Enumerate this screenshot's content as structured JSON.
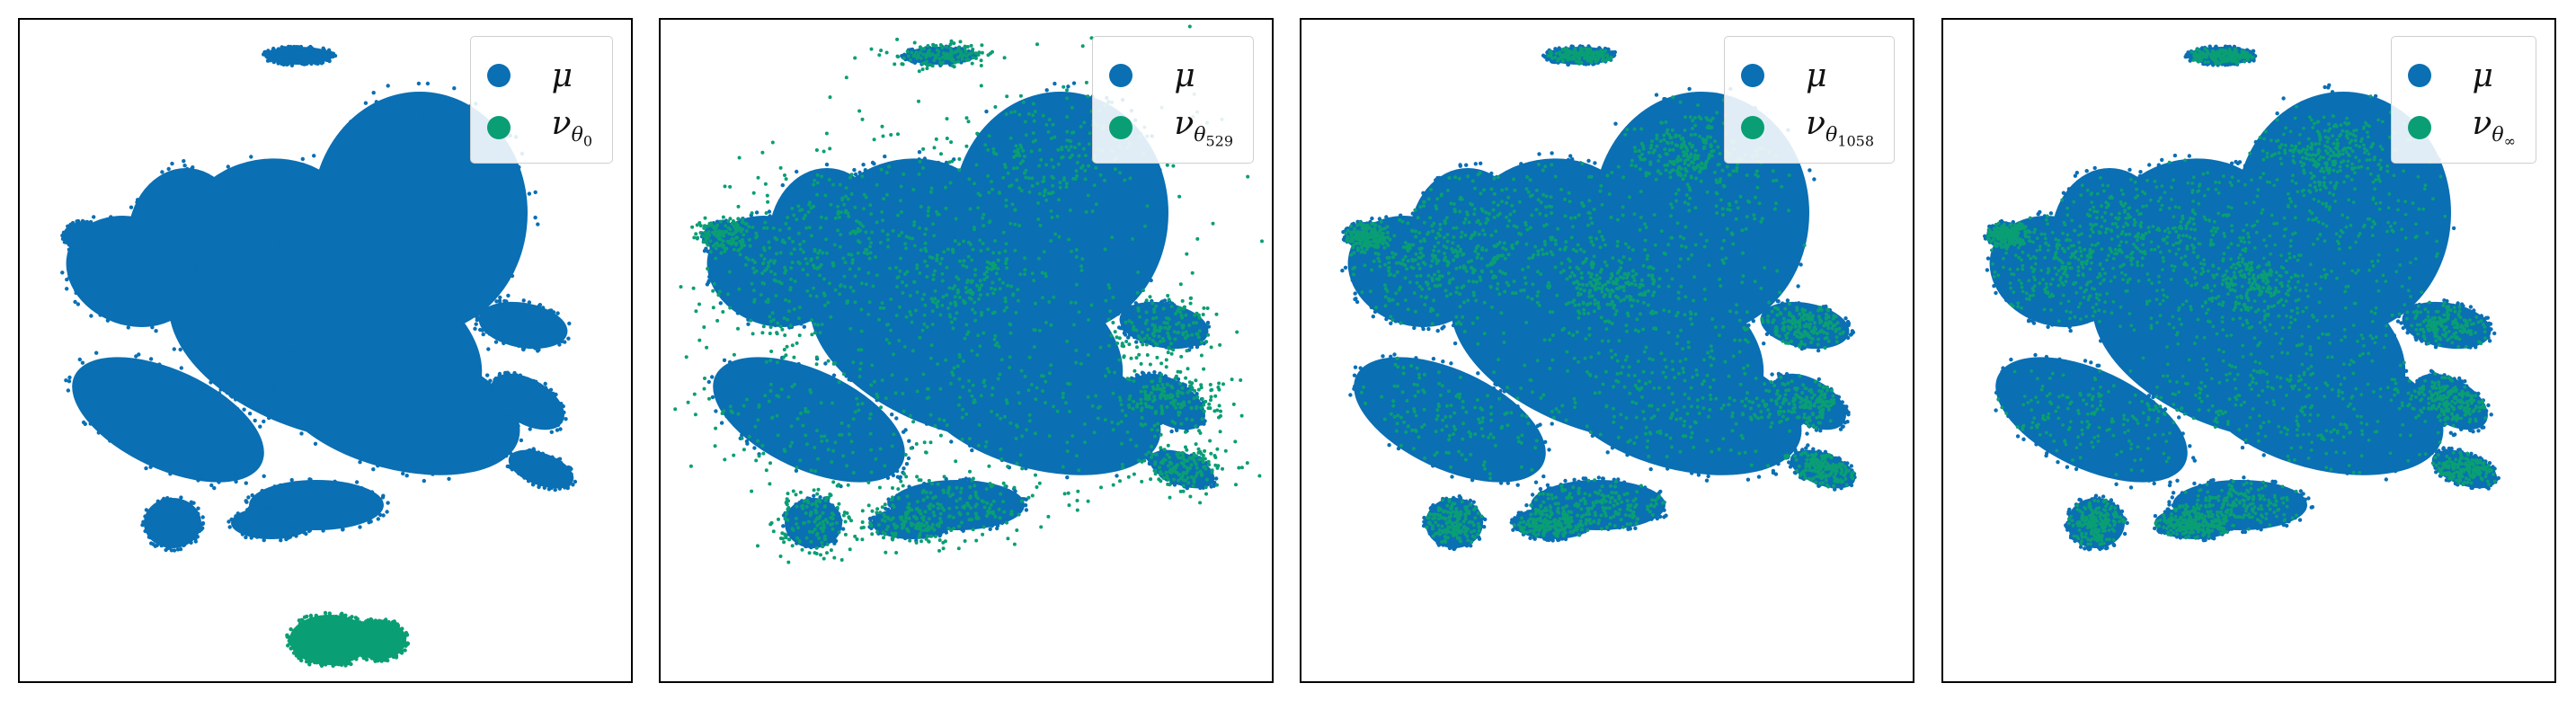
{
  "colors": {
    "mu": "#0a6fb3",
    "nu": "#0a9e74"
  },
  "chart_data": [
    {
      "type": "scatter",
      "panel_id": "panel-1",
      "legend": {
        "mu": "μ",
        "nu_base": "ν",
        "nu_sub": "θ",
        "nu_sub_sub": "0"
      },
      "legend_position": "top-right",
      "nu_pattern": "separate"
    },
    {
      "type": "scatter",
      "panel_id": "panel-2",
      "legend": {
        "mu": "μ",
        "nu_base": "ν",
        "nu_sub": "θ",
        "nu_sub_sub": "529"
      },
      "legend_position": "top-right",
      "nu_pattern": "partial"
    },
    {
      "type": "scatter",
      "panel_id": "panel-3",
      "legend": {
        "mu": "μ",
        "nu_base": "ν",
        "nu_sub": "θ",
        "nu_sub_sub": "1058"
      },
      "legend_position": "top-right",
      "nu_pattern": "mixed"
    },
    {
      "type": "scatter",
      "panel_id": "panel-4",
      "legend": {
        "mu": "μ",
        "nu_base": "ν",
        "nu_sub": "θ",
        "nu_sub_sub": "∞"
      },
      "legend_position": "top-right",
      "nu_pattern": "converged"
    }
  ]
}
